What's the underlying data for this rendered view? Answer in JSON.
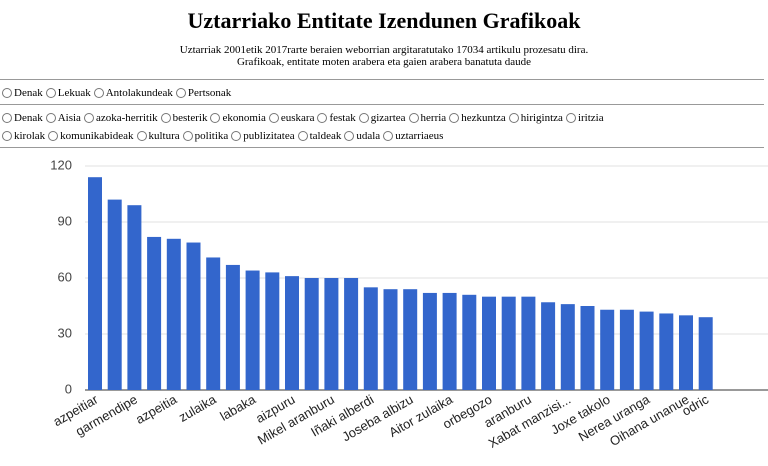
{
  "header": {
    "title": "Uztarriako Entitate Izendunen Grafikoak",
    "subtitle": [
      "Uztarriak 2001etik 2017rarte beraien weborrian argitaratutako 17034 artikulu prozesatu dira.",
      "Grafikoak, entitate moten arabera eta gaien arabera banatuta daude"
    ]
  },
  "filters": {
    "entity_types": [
      "Denak",
      "Lekuak",
      "Antolakundeak",
      "Pertsonak"
    ],
    "topics": [
      "Denak",
      "Aisia",
      "azoka-herritik",
      "besterik",
      "ekonomia",
      "euskara",
      "festak",
      "gizartea",
      "herria",
      "hezkuntza",
      "hirigintza",
      "iritzia",
      "kirolak",
      "komunikabideak",
      "kultura",
      "politika",
      "publizitatea",
      "taldeak",
      "udala",
      "uztarriaeus"
    ]
  },
  "chart_data": {
    "type": "bar",
    "categories": [
      "azpeitiar",
      null,
      "garmendipe",
      null,
      "azpeitia",
      null,
      "zulaika",
      null,
      "labaka",
      null,
      "aizpuru",
      null,
      "Mikel aranburu",
      null,
      "Iñaki alberdi",
      null,
      "Joseba albizu",
      null,
      "Aitor zulaika",
      null,
      "orbegozo",
      null,
      "aranburu",
      null,
      "Xabat manzisi...",
      null,
      "Joxe takolo",
      null,
      "Nerea uranga",
      null,
      "Oihana unanue",
      "odric"
    ],
    "values": [
      114,
      102,
      99,
      82,
      81,
      79,
      71,
      67,
      64,
      63,
      61,
      60,
      60,
      60,
      55,
      54,
      54,
      52,
      52,
      51,
      50,
      50,
      50,
      47,
      46,
      45,
      43,
      43,
      42,
      41,
      40,
      39
    ],
    "color": "#3366cc",
    "ylim": [
      0,
      120
    ],
    "yticks": [
      0,
      30,
      60,
      90,
      120
    ],
    "grid": true
  }
}
